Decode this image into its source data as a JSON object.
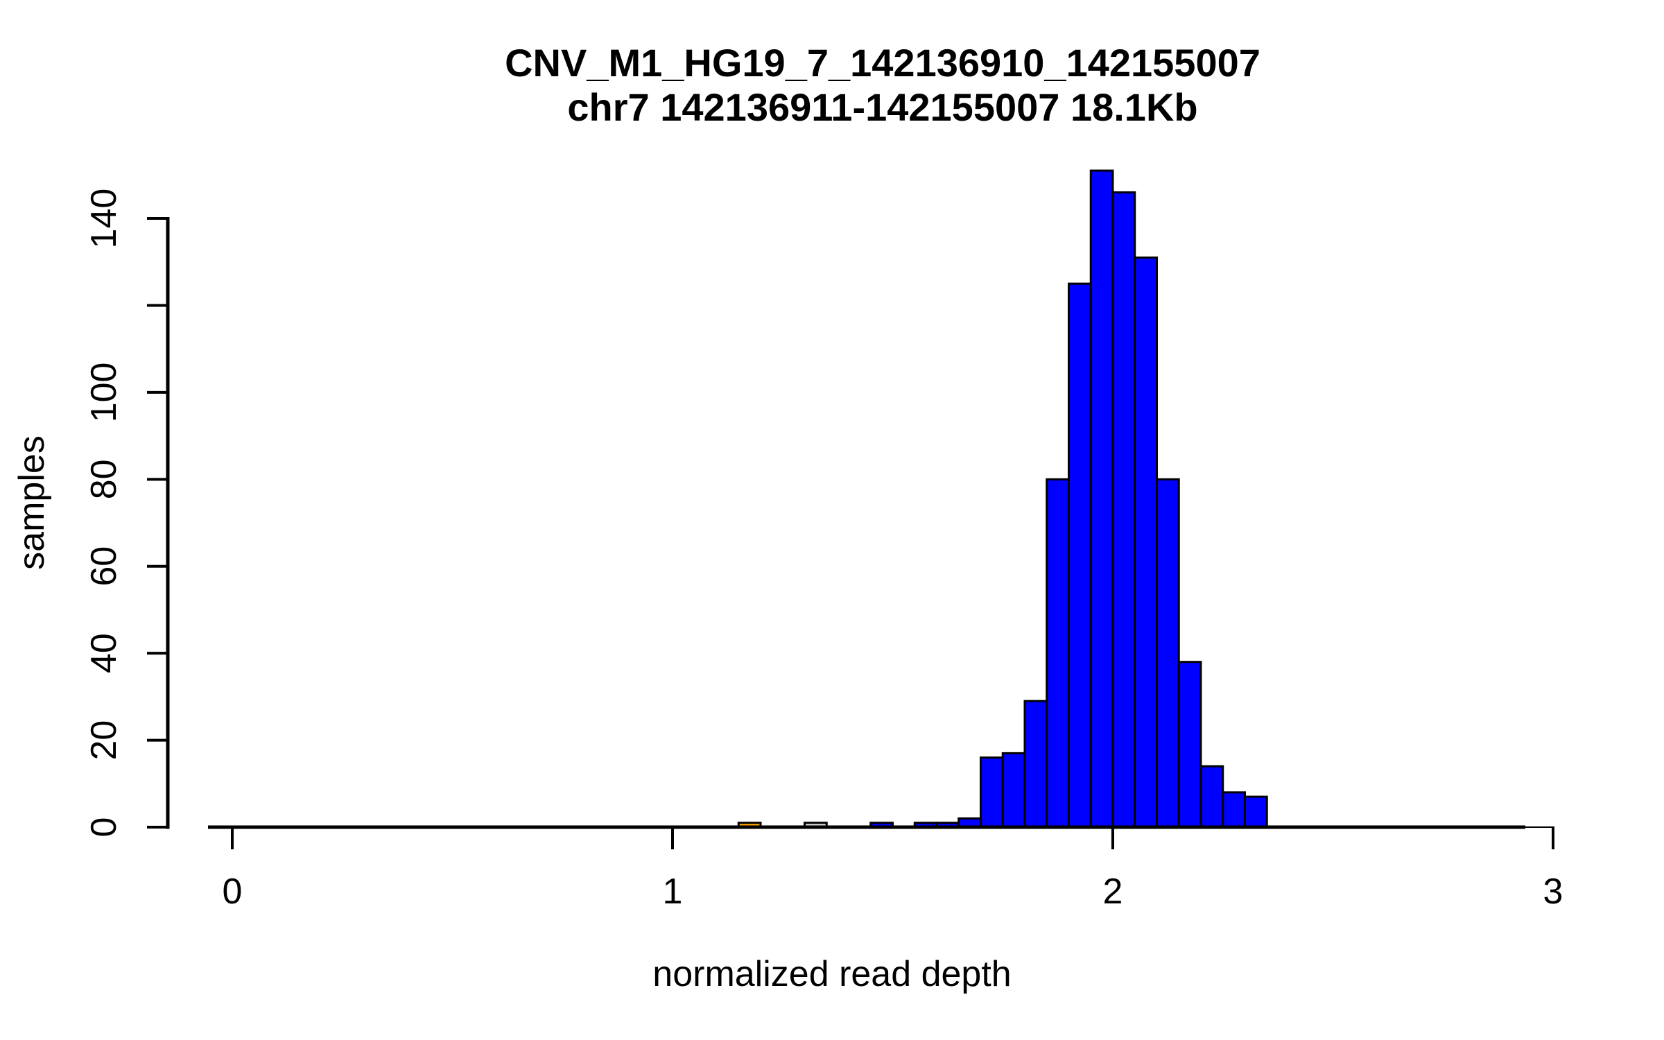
{
  "chart_data": {
    "type": "histogram",
    "title": "CNV_M1_HG19_7_142136910_142155007",
    "subtitle": "chr7 142136911-142155007 18.1Kb",
    "xlabel": "normalized read depth",
    "ylabel": "samples",
    "xlim": [
      0,
      3
    ],
    "ylim": [
      0,
      151
    ],
    "grid": "off",
    "legend": "none",
    "bin_width": 0.05,
    "colors": {
      "default_bar": "#0000FF",
      "highlight_bar": "#FFA500",
      "reference_bar": "#D9D9D9",
      "bar_border": "#000000",
      "axis": "#000000",
      "background": "#FFFFFF"
    },
    "x_ticks": [
      {
        "value": 0,
        "label": "0"
      },
      {
        "value": 1,
        "label": "1"
      },
      {
        "value": 2,
        "label": "2"
      },
      {
        "value": 3,
        "label": "3"
      }
    ],
    "y_ticks": [
      {
        "value": 0,
        "label": "0"
      },
      {
        "value": 20,
        "label": "20"
      },
      {
        "value": 40,
        "label": "40"
      },
      {
        "value": 60,
        "label": "60"
      },
      {
        "value": 80,
        "label": "80"
      },
      {
        "value": 100,
        "label": "100"
      },
      {
        "value": 120,
        "label": null
      },
      {
        "value": 140,
        "label": "140"
      }
    ],
    "bins": [
      {
        "x0": 1.15,
        "x1": 1.2,
        "count": 1,
        "color": "#FFA500"
      },
      {
        "x0": 1.3,
        "x1": 1.35,
        "count": 1,
        "color": "#D9D9D9"
      },
      {
        "x0": 1.45,
        "x1": 1.5,
        "count": 1,
        "color": "#0000FF"
      },
      {
        "x0": 1.55,
        "x1": 1.6,
        "count": 1,
        "color": "#0000FF"
      },
      {
        "x0": 1.6,
        "x1": 1.65,
        "count": 1,
        "color": "#0000FF"
      },
      {
        "x0": 1.65,
        "x1": 1.7,
        "count": 2,
        "color": "#0000FF"
      },
      {
        "x0": 1.7,
        "x1": 1.75,
        "count": 16,
        "color": "#0000FF"
      },
      {
        "x0": 1.75,
        "x1": 1.8,
        "count": 17,
        "color": "#0000FF"
      },
      {
        "x0": 1.8,
        "x1": 1.85,
        "count": 29,
        "color": "#0000FF"
      },
      {
        "x0": 1.85,
        "x1": 1.9,
        "count": 80,
        "color": "#0000FF"
      },
      {
        "x0": 1.9,
        "x1": 1.95,
        "count": 125,
        "color": "#0000FF"
      },
      {
        "x0": 1.95,
        "x1": 2.0,
        "count": 151,
        "color": "#0000FF"
      },
      {
        "x0": 2.0,
        "x1": 2.05,
        "count": 146,
        "color": "#0000FF"
      },
      {
        "x0": 2.05,
        "x1": 2.1,
        "count": 131,
        "color": "#0000FF"
      },
      {
        "x0": 2.1,
        "x1": 2.15,
        "count": 80,
        "color": "#0000FF"
      },
      {
        "x0": 2.15,
        "x1": 2.2,
        "count": 38,
        "color": "#0000FF"
      },
      {
        "x0": 2.2,
        "x1": 2.25,
        "count": 14,
        "color": "#0000FF"
      },
      {
        "x0": 2.25,
        "x1": 2.3,
        "count": 8,
        "color": "#0000FF"
      },
      {
        "x0": 2.3,
        "x1": 2.35,
        "count": 7,
        "color": "#0000FF"
      }
    ]
  }
}
